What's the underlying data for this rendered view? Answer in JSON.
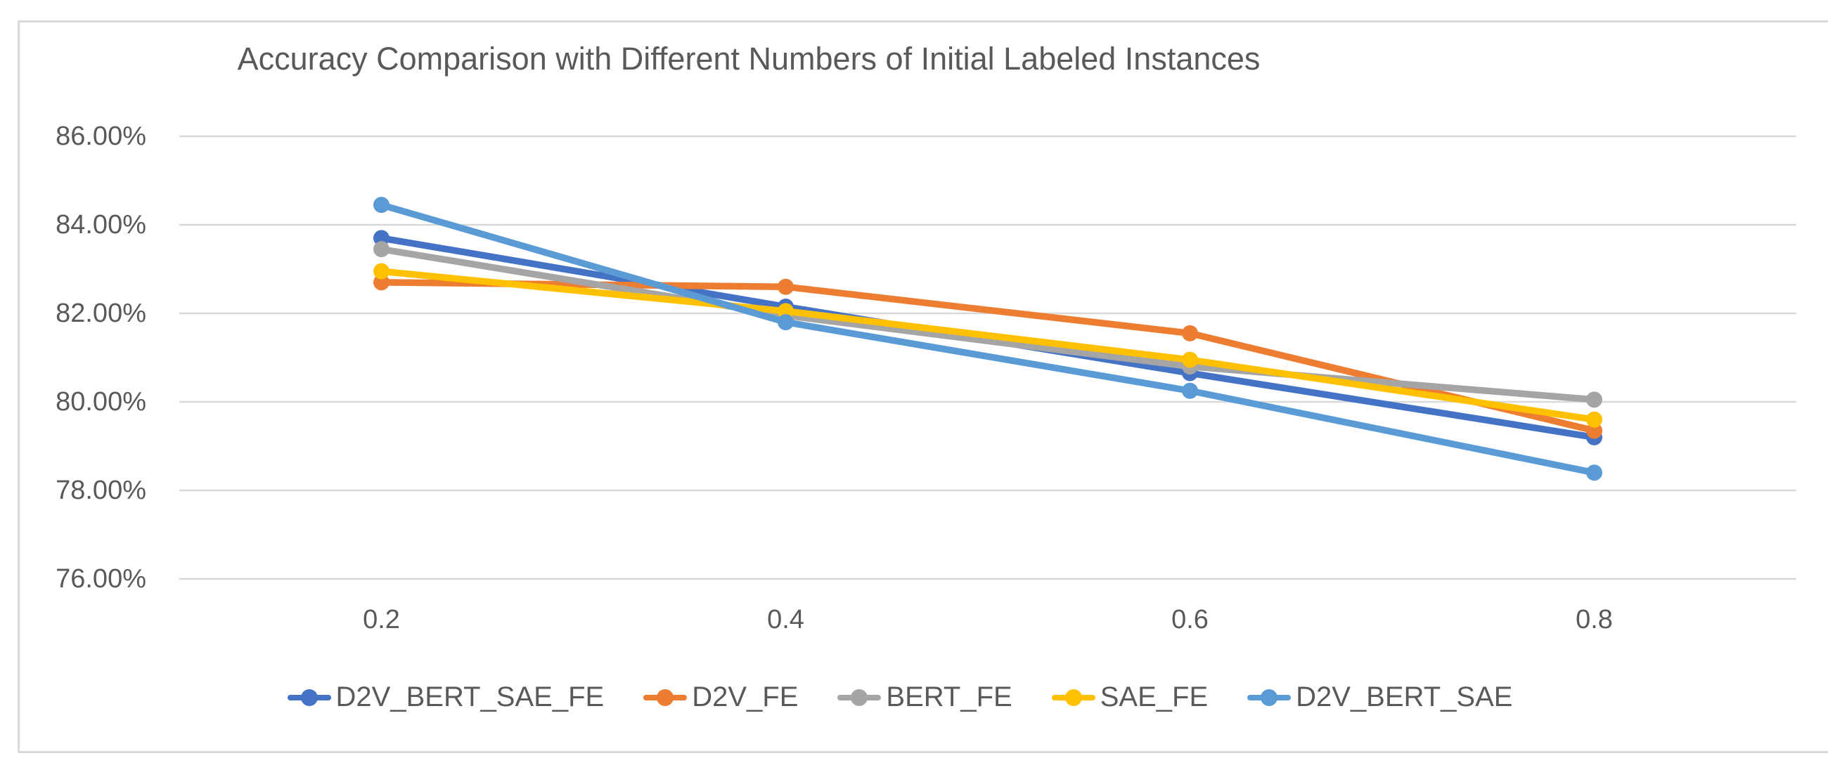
{
  "chart_data": {
    "type": "line",
    "title": "Accuracy Comparison with Different Numbers of Initial Labeled Instances",
    "categories": [
      0.2,
      0.4,
      0.6,
      0.8
    ],
    "x_tick_labels": [
      "0.2",
      "0.4",
      "0.6",
      "0.8"
    ],
    "y_tick_labels": [
      "86.00%",
      "84.00%",
      "82.00%",
      "80.00%",
      "78.00%",
      "76.00%"
    ],
    "ylim": [
      76,
      86
    ],
    "y_unit": "percent",
    "grid": "horizontal",
    "legend_position": "bottom",
    "series": [
      {
        "name": "D2V_BERT_SAE_FE",
        "color": "#4472C4",
        "values": [
          83.7,
          82.15,
          80.65,
          79.2
        ]
      },
      {
        "name": "D2V_FE",
        "color": "#ED7D31",
        "values": [
          82.7,
          82.6,
          81.55,
          79.35
        ]
      },
      {
        "name": "BERT_FE",
        "color": "#A5A5A5",
        "values": [
          83.45,
          81.95,
          80.8,
          80.05
        ]
      },
      {
        "name": "SAE_FE",
        "color": "#FFC000",
        "values": [
          82.95,
          82.05,
          80.95,
          79.6
        ]
      },
      {
        "name": "D2V_BERT_SAE",
        "color": "#5B9BD5",
        "values": [
          84.45,
          81.8,
          80.25,
          78.4
        ]
      }
    ],
    "gridline_color": "#D9D9D9",
    "frame_border_color": "#D9D9D9",
    "text_color": "#595959"
  }
}
